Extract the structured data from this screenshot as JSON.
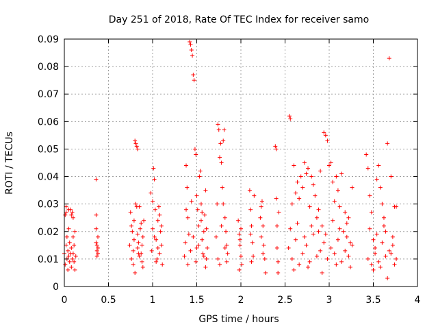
{
  "chart_data": {
    "type": "scatter",
    "title": "Day 251 of 2018, Rate Of TEC Index for receiver samo",
    "xlabel": "GPS time / hours",
    "ylabel": "ROTI / TECUs",
    "xlim": [
      0,
      4
    ],
    "ylim": [
      0,
      0.09
    ],
    "x_ticks": [
      0,
      0.5,
      1,
      1.5,
      2,
      2.5,
      3,
      3.5,
      4
    ],
    "x_tick_labels": [
      "0",
      "0.5",
      "1",
      "1.5",
      "2",
      "2.5",
      "3",
      "3.5",
      "4"
    ],
    "y_ticks": [
      0,
      0.01,
      0.02,
      0.03,
      0.04,
      0.05,
      0.06,
      0.07,
      0.08,
      0.09
    ],
    "y_tick_labels": [
      "0",
      "0.01",
      "0.02",
      "0.03",
      "0.04",
      "0.05",
      "0.06",
      "0.07",
      "0.08",
      "0.09"
    ],
    "grid": true,
    "marker": "+",
    "marker_color": "#ff0000",
    "series": [
      {
        "name": "ROTI",
        "points": [
          [
            0.0,
            0.012
          ],
          [
            0.01,
            0.026
          ],
          [
            0.01,
            0.008
          ],
          [
            0.02,
            0.015
          ],
          [
            0.02,
            0.027
          ],
          [
            0.03,
            0.01
          ],
          [
            0.03,
            0.018
          ],
          [
            0.04,
            0.006
          ],
          [
            0.04,
            0.013
          ],
          [
            0.05,
            0.021
          ],
          [
            0.05,
            0.011
          ],
          [
            0.06,
            0.009
          ],
          [
            0.06,
            0.016
          ],
          [
            0.07,
            0.028
          ],
          [
            0.07,
            0.012
          ],
          [
            0.08,
            0.007
          ],
          [
            0.08,
            0.014
          ],
          [
            0.09,
            0.027
          ],
          [
            0.09,
            0.01
          ],
          [
            0.1,
            0.018
          ],
          [
            0.1,
            0.012
          ],
          [
            0.11,
            0.009
          ],
          [
            0.11,
            0.015
          ],
          [
            0.12,
            0.02
          ],
          [
            0.12,
            0.006
          ],
          [
            0.13,
            0.011
          ],
          [
            0.02,
            0.029
          ],
          [
            0.05,
            0.028
          ],
          [
            0.08,
            0.026
          ],
          [
            0.1,
            0.025
          ],
          [
            0.36,
            0.039
          ],
          [
            0.36,
            0.026
          ],
          [
            0.36,
            0.021
          ],
          [
            0.36,
            0.016
          ],
          [
            0.37,
            0.013
          ],
          [
            0.37,
            0.011
          ],
          [
            0.37,
            0.015
          ],
          [
            0.38,
            0.014
          ],
          [
            0.38,
            0.018
          ],
          [
            0.38,
            0.012
          ],
          [
            0.74,
            0.015
          ],
          [
            0.75,
            0.027
          ],
          [
            0.76,
            0.01
          ],
          [
            0.77,
            0.02
          ],
          [
            0.78,
            0.008
          ],
          [
            0.79,
            0.024
          ],
          [
            0.8,
            0.053
          ],
          [
            0.81,
            0.052
          ],
          [
            0.82,
            0.051
          ],
          [
            0.83,
            0.05
          ],
          [
            0.81,
            0.03
          ],
          [
            0.82,
            0.029
          ],
          [
            0.83,
            0.014
          ],
          [
            0.84,
            0.016
          ],
          [
            0.85,
            0.029
          ],
          [
            0.86,
            0.021
          ],
          [
            0.87,
            0.012
          ],
          [
            0.88,
            0.009
          ],
          [
            0.89,
            0.018
          ],
          [
            0.9,
            0.024
          ],
          [
            0.78,
            0.013
          ],
          [
            0.79,
            0.017
          ],
          [
            0.8,
            0.005
          ],
          [
            0.83,
            0.019
          ],
          [
            0.85,
            0.011
          ],
          [
            0.87,
            0.023
          ],
          [
            0.88,
            0.015
          ],
          [
            0.89,
            0.007
          ],
          [
            0.76,
            0.022
          ],
          [
            0.84,
            0.012
          ],
          [
            0.98,
            0.034
          ],
          [
            0.99,
            0.013
          ],
          [
            1.0,
            0.021
          ],
          [
            1.01,
            0.043
          ],
          [
            1.02,
            0.039
          ],
          [
            1.03,
            0.028
          ],
          [
            1.04,
            0.017
          ],
          [
            1.05,
            0.01
          ],
          [
            1.06,
            0.024
          ],
          [
            1.07,
            0.029
          ],
          [
            1.08,
            0.012
          ],
          [
            1.09,
            0.02
          ],
          [
            1.1,
            0.015
          ],
          [
            1.11,
            0.008
          ],
          [
            1.0,
            0.031
          ],
          [
            1.02,
            0.018
          ],
          [
            1.04,
            0.009
          ],
          [
            1.06,
            0.014
          ],
          [
            1.08,
            0.026
          ],
          [
            1.1,
            0.022
          ],
          [
            1.36,
            0.011
          ],
          [
            1.38,
            0.044
          ],
          [
            1.39,
            0.036
          ],
          [
            1.4,
            0.025
          ],
          [
            1.41,
            0.019
          ],
          [
            1.42,
            0.089
          ],
          [
            1.43,
            0.088
          ],
          [
            1.44,
            0.086
          ],
          [
            1.45,
            0.084
          ],
          [
            1.46,
            0.077
          ],
          [
            1.47,
            0.075
          ],
          [
            1.48,
            0.05
          ],
          [
            1.49,
            0.048
          ],
          [
            1.5,
            0.033
          ],
          [
            1.51,
            0.028
          ],
          [
            1.52,
            0.022
          ],
          [
            1.53,
            0.04
          ],
          [
            1.54,
            0.042
          ],
          [
            1.55,
            0.03
          ],
          [
            1.56,
            0.017
          ],
          [
            1.57,
            0.012
          ],
          [
            1.58,
            0.02
          ],
          [
            1.59,
            0.026
          ],
          [
            1.6,
            0.035
          ],
          [
            1.61,
            0.01
          ],
          [
            1.62,
            0.014
          ],
          [
            1.37,
            0.016
          ],
          [
            1.4,
            0.008
          ],
          [
            1.43,
            0.013
          ],
          [
            1.46,
            0.018
          ],
          [
            1.49,
            0.009
          ],
          [
            1.52,
            0.015
          ],
          [
            1.55,
            0.024
          ],
          [
            1.58,
            0.011
          ],
          [
            1.61,
            0.021
          ],
          [
            1.38,
            0.028
          ],
          [
            1.44,
            0.031
          ],
          [
            1.5,
            0.014
          ],
          [
            1.56,
            0.027
          ],
          [
            1.6,
            0.007
          ],
          [
            1.72,
            0.018
          ],
          [
            1.73,
            0.03
          ],
          [
            1.74,
            0.059
          ],
          [
            1.75,
            0.057
          ],
          [
            1.76,
            0.047
          ],
          [
            1.77,
            0.052
          ],
          [
            1.78,
            0.045
          ],
          [
            1.79,
            0.036
          ],
          [
            1.8,
            0.053
          ],
          [
            1.81,
            0.057
          ],
          [
            1.82,
            0.025
          ],
          [
            1.83,
            0.02
          ],
          [
            1.84,
            0.015
          ],
          [
            1.85,
            0.012
          ],
          [
            1.74,
            0.01
          ],
          [
            1.76,
            0.008
          ],
          [
            1.78,
            0.022
          ],
          [
            1.8,
            0.03
          ],
          [
            1.82,
            0.014
          ],
          [
            1.84,
            0.009
          ],
          [
            1.97,
            0.024
          ],
          [
            1.98,
            0.019
          ],
          [
            1.99,
            0.015
          ],
          [
            2.0,
            0.011
          ],
          [
            2.01,
            0.008
          ],
          [
            1.98,
            0.006
          ],
          [
            2.0,
            0.021
          ],
          [
            1.99,
            0.017
          ],
          [
            2.1,
            0.035
          ],
          [
            2.11,
            0.028
          ],
          [
            2.12,
            0.022
          ],
          [
            2.13,
            0.016
          ],
          [
            2.14,
            0.011
          ],
          [
            2.15,
            0.033
          ],
          [
            2.12,
            0.009
          ],
          [
            2.11,
            0.019
          ],
          [
            2.22,
            0.025
          ],
          [
            2.23,
            0.029
          ],
          [
            2.24,
            0.031
          ],
          [
            2.25,
            0.022
          ],
          [
            2.26,
            0.015
          ],
          [
            2.27,
            0.01
          ],
          [
            2.28,
            0.005
          ],
          [
            2.25,
            0.012
          ],
          [
            2.23,
            0.018
          ],
          [
            2.39,
            0.051
          ],
          [
            2.4,
            0.05
          ],
          [
            2.4,
            0.032
          ],
          [
            2.41,
            0.022
          ],
          [
            2.41,
            0.014
          ],
          [
            2.42,
            0.009
          ],
          [
            2.42,
            0.005
          ],
          [
            2.43,
            0.027
          ],
          [
            2.55,
            0.062
          ],
          [
            2.56,
            0.061
          ],
          [
            2.58,
            0.03
          ],
          [
            2.6,
            0.044
          ],
          [
            2.62,
            0.034
          ],
          [
            2.64,
            0.038
          ],
          [
            2.66,
            0.032
          ],
          [
            2.68,
            0.04
          ],
          [
            2.7,
            0.036
          ],
          [
            2.72,
            0.045
          ],
          [
            2.74,
            0.041
          ],
          [
            2.76,
            0.043
          ],
          [
            2.78,
            0.029
          ],
          [
            2.8,
            0.04
          ],
          [
            2.82,
            0.037
          ],
          [
            2.84,
            0.033
          ],
          [
            2.86,
            0.025
          ],
          [
            2.88,
            0.028
          ],
          [
            2.9,
            0.042
          ],
          [
            2.92,
            0.022
          ],
          [
            2.94,
            0.056
          ],
          [
            2.96,
            0.055
          ],
          [
            2.98,
            0.053
          ],
          [
            3.0,
            0.044
          ],
          [
            3.02,
            0.045
          ],
          [
            3.04,
            0.038
          ],
          [
            3.06,
            0.031
          ],
          [
            3.08,
            0.04
          ],
          [
            3.1,
            0.035
          ],
          [
            3.12,
            0.029
          ],
          [
            3.14,
            0.041
          ],
          [
            3.16,
            0.02
          ],
          [
            3.18,
            0.027
          ],
          [
            3.2,
            0.018
          ],
          [
            3.22,
            0.025
          ],
          [
            3.24,
            0.016
          ],
          [
            3.26,
            0.036
          ],
          [
            2.54,
            0.014
          ],
          [
            2.58,
            0.01
          ],
          [
            2.62,
            0.017
          ],
          [
            2.66,
            0.008
          ],
          [
            2.7,
            0.012
          ],
          [
            2.74,
            0.015
          ],
          [
            2.78,
            0.009
          ],
          [
            2.82,
            0.019
          ],
          [
            2.86,
            0.011
          ],
          [
            2.9,
            0.013
          ],
          [
            2.94,
            0.016
          ],
          [
            2.98,
            0.01
          ],
          [
            3.02,
            0.014
          ],
          [
            3.06,
            0.012
          ],
          [
            3.1,
            0.017
          ],
          [
            3.14,
            0.009
          ],
          [
            3.18,
            0.013
          ],
          [
            3.22,
            0.011
          ],
          [
            3.26,
            0.015
          ],
          [
            2.56,
            0.021
          ],
          [
            2.64,
            0.023
          ],
          [
            2.72,
            0.018
          ],
          [
            2.8,
            0.022
          ],
          [
            2.88,
            0.02
          ],
          [
            2.96,
            0.019
          ],
          [
            3.04,
            0.024
          ],
          [
            3.12,
            0.021
          ],
          [
            3.2,
            0.023
          ],
          [
            2.6,
            0.006
          ],
          [
            2.76,
            0.007
          ],
          [
            2.92,
            0.005
          ],
          [
            3.08,
            0.008
          ],
          [
            3.24,
            0.007
          ],
          [
            3.42,
            0.048
          ],
          [
            3.44,
            0.043
          ],
          [
            3.46,
            0.033
          ],
          [
            3.48,
            0.027
          ],
          [
            3.5,
            0.017
          ],
          [
            3.52,
            0.012
          ],
          [
            3.54,
            0.039
          ],
          [
            3.56,
            0.044
          ],
          [
            3.58,
            0.036
          ],
          [
            3.6,
            0.03
          ],
          [
            3.62,
            0.025
          ],
          [
            3.64,
            0.02
          ],
          [
            3.66,
            0.052
          ],
          [
            3.68,
            0.083
          ],
          [
            3.7,
            0.04
          ],
          [
            3.72,
            0.015
          ],
          [
            3.74,
            0.029
          ],
          [
            3.76,
            0.029
          ],
          [
            3.44,
            0.01
          ],
          [
            3.48,
            0.008
          ],
          [
            3.52,
            0.014
          ],
          [
            3.56,
            0.009
          ],
          [
            3.6,
            0.016
          ],
          [
            3.64,
            0.011
          ],
          [
            3.68,
            0.013
          ],
          [
            3.72,
            0.018
          ],
          [
            3.76,
            0.01
          ],
          [
            3.46,
            0.021
          ],
          [
            3.54,
            0.019
          ],
          [
            3.62,
            0.022
          ],
          [
            3.7,
            0.012
          ],
          [
            3.66,
            0.003
          ],
          [
            3.5,
            0.006
          ],
          [
            3.58,
            0.007
          ],
          [
            3.74,
            0.008
          ]
        ]
      }
    ]
  }
}
